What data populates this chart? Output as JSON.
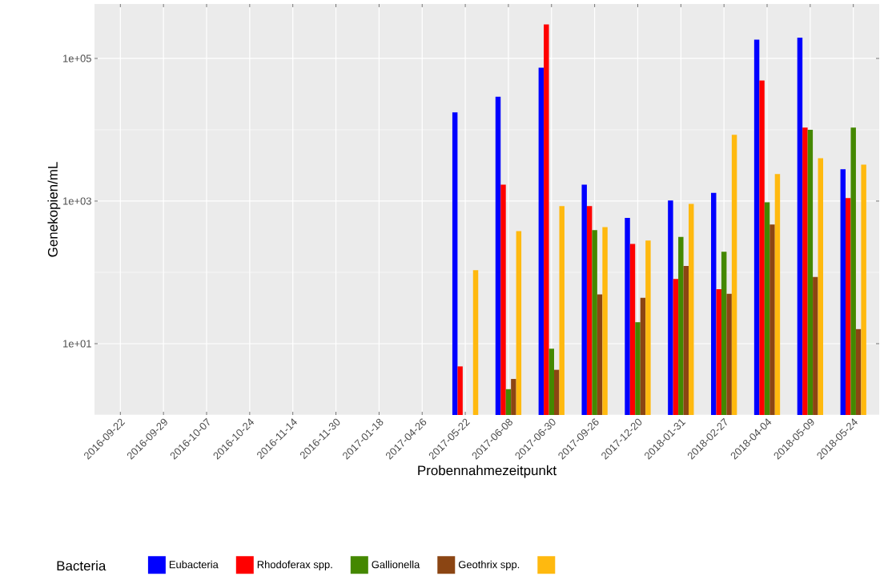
{
  "chart_data": {
    "type": "bar",
    "xlabel": "Probennahmezeitpunkt",
    "ylabel": "Genekopien/mL",
    "legend_title": "Bacteria",
    "categories": [
      "2016-09-22",
      "2016-09-29",
      "2016-10-07",
      "2016-10-24",
      "2016-11-14",
      "2016-11-30",
      "2017-01-18",
      "2017-04-26",
      "2017-05-22",
      "2017-06-08",
      "2017-06-30",
      "2017-09-26",
      "2017-12-20",
      "2018-01-31",
      "2018-02-27",
      "2018-04-04",
      "2018-05-09",
      "2018-05-24"
    ],
    "series": [
      {
        "name": "Eubacteria",
        "color": "#0000ff",
        "values": [
          null,
          null,
          null,
          null,
          null,
          null,
          null,
          null,
          17500,
          29000,
          74000,
          1700,
          580,
          1020,
          1300,
          183000,
          196000,
          2800
        ]
      },
      {
        "name": "Rhodoferax spp.",
        "color": "#ff0000",
        "values": [
          null,
          null,
          null,
          null,
          null,
          null,
          null,
          null,
          4.8,
          1700,
          300000,
          850,
          250,
          81,
          58,
          49000,
          10700,
          1100
        ]
      },
      {
        "name": "Gallionella",
        "color": "#448800",
        "values": [
          null,
          null,
          null,
          null,
          null,
          null,
          null,
          null,
          null,
          2.3,
          8.5,
          390,
          20,
          315,
          195,
          960,
          10000,
          10700
        ]
      },
      {
        "name": "Geothrix spp.",
        "color": "#8b4513",
        "values": [
          null,
          null,
          null,
          null,
          null,
          null,
          null,
          null,
          null,
          3.2,
          4.3,
          49,
          44,
          123,
          50,
          470,
          86,
          16
        ]
      },
      {
        "color": "#ffb90f",
        "values": [
          null,
          null,
          null,
          null,
          null,
          null,
          null,
          null,
          107,
          380,
          850,
          430,
          280,
          910,
          8500,
          2400,
          4000,
          3250
        ]
      }
    ],
    "log": "y",
    "ylim": [
      1,
      580000
    ],
    "yticks": [
      {
        "value": 1,
        "label": null
      },
      {
        "value": 10,
        "label": "1e+01"
      },
      {
        "value": 100,
        "label": null
      },
      {
        "value": 1000,
        "label": "1e+03"
      },
      {
        "value": 10000,
        "label": null
      },
      {
        "value": 100000,
        "label": "1e+05"
      }
    ],
    "grid": true,
    "legend": "bottom"
  }
}
